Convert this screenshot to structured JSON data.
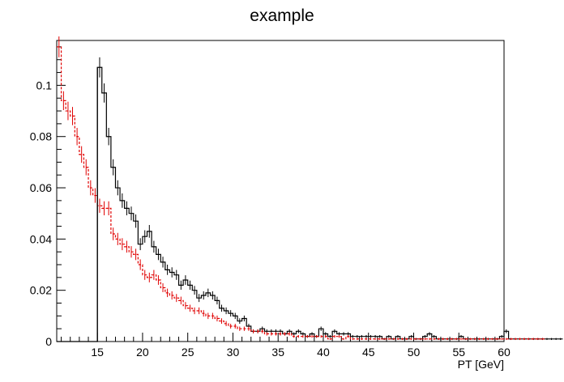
{
  "chart_data": {
    "type": "histogram",
    "title": "example",
    "xlabel": "PT [GeV]",
    "ylabel": "",
    "xlim": [
      10.5,
      60
    ],
    "ylim": [
      0,
      0.1175
    ],
    "bin_width": 0.5,
    "grid": false,
    "legend": "none",
    "x_ticks": [
      15,
      20,
      25,
      30,
      35,
      40,
      45,
      50,
      55,
      60
    ],
    "x_tick_labels": [
      "15",
      "20",
      "25",
      "30",
      "35",
      "40",
      "45",
      "50",
      "55",
      "60"
    ],
    "y_ticks": [
      0,
      0.02,
      0.04,
      0.06,
      0.08,
      0.1
    ],
    "y_tick_labels": [
      "0",
      "0.02",
      "0.04",
      "0.06",
      "0.08",
      "0.1"
    ],
    "series": [
      {
        "color": "#000000",
        "line_style": "solid",
        "error_bars": true,
        "x_start": 10.5,
        "values": [
          0,
          0,
          0,
          0,
          0,
          0,
          0,
          0,
          0,
          0.107,
          0.097,
          0.08,
          0.068,
          0.06,
          0.055,
          0.052,
          0.05,
          0.047,
          0.038,
          0.041,
          0.043,
          0.037,
          0.034,
          0.031,
          0.028,
          0.027,
          0.026,
          0.022,
          0.024,
          0.022,
          0.02,
          0.017,
          0.018,
          0.019,
          0.018,
          0.016,
          0.013,
          0.012,
          0.011,
          0.01,
          0.008,
          0.009,
          0.006,
          0.004,
          0.004,
          0.005,
          0.004,
          0.004,
          0.004,
          0.004,
          0.003,
          0.004,
          0.003,
          0.004,
          0.003,
          0.002,
          0.003,
          0.002,
          0.005,
          0.003,
          0.002,
          0.004,
          0.003,
          0.003,
          0.003,
          0.002,
          0.002,
          0.002,
          0.002,
          0.002,
          0.002,
          0.002,
          0.001,
          0.002,
          0.001,
          0.002,
          0.001,
          0.001,
          0.002,
          0.001,
          0.001,
          0.002,
          0.003,
          0.002,
          0.001,
          0.001,
          0.001,
          0.001,
          0.001,
          0.002,
          0.001,
          0.001,
          0.001,
          0.001,
          0.001,
          0.001,
          0.001,
          0.001,
          0.002,
          0.004,
          0.001,
          0.001,
          0.001,
          0.001,
          0.001,
          0.001,
          0.001,
          0.001,
          0.001,
          0.001,
          0.001,
          0.001
        ]
      },
      {
        "color": "#e00000",
        "line_style": "dashed",
        "error_bars": true,
        "x_start": 10.5,
        "values": [
          0.115,
          0.094,
          0.09,
          0.088,
          0.08,
          0.073,
          0.068,
          0.06,
          0.057,
          0.053,
          0.052,
          0.052,
          0.042,
          0.04,
          0.038,
          0.037,
          0.035,
          0.034,
          0.03,
          0.026,
          0.025,
          0.026,
          0.024,
          0.021,
          0.019,
          0.018,
          0.017,
          0.016,
          0.014,
          0.013,
          0.012,
          0.012,
          0.011,
          0.01,
          0.01,
          0.009,
          0.008,
          0.007,
          0.006,
          0.006,
          0.005,
          0.005,
          0.005,
          0.004,
          0.004,
          0.004,
          0.003,
          0.003,
          0.003,
          0.003,
          0.003,
          0.003,
          0.002,
          0.002,
          0.002,
          0.002,
          0.002,
          0.002,
          0.002,
          0.002,
          0.001,
          0.002,
          0.002,
          0.001,
          0.002,
          0.001,
          0.001,
          0.001,
          0.001,
          0.001,
          0.001,
          0.001,
          0.001,
          0.001,
          0.001,
          0.001,
          0.001,
          0.001,
          0.001,
          0.001,
          0.001,
          0.001,
          0.001,
          0.001,
          0.001,
          0.001,
          0.001,
          0.001,
          0.001,
          0.001,
          0.001,
          0.001,
          0.001,
          0.001,
          0.001,
          0.001,
          0.001,
          0.001,
          0.001,
          0.001,
          0.001,
          0.001,
          0.001,
          0.001,
          0.001,
          0.001,
          0.001,
          0.001
        ]
      }
    ]
  }
}
